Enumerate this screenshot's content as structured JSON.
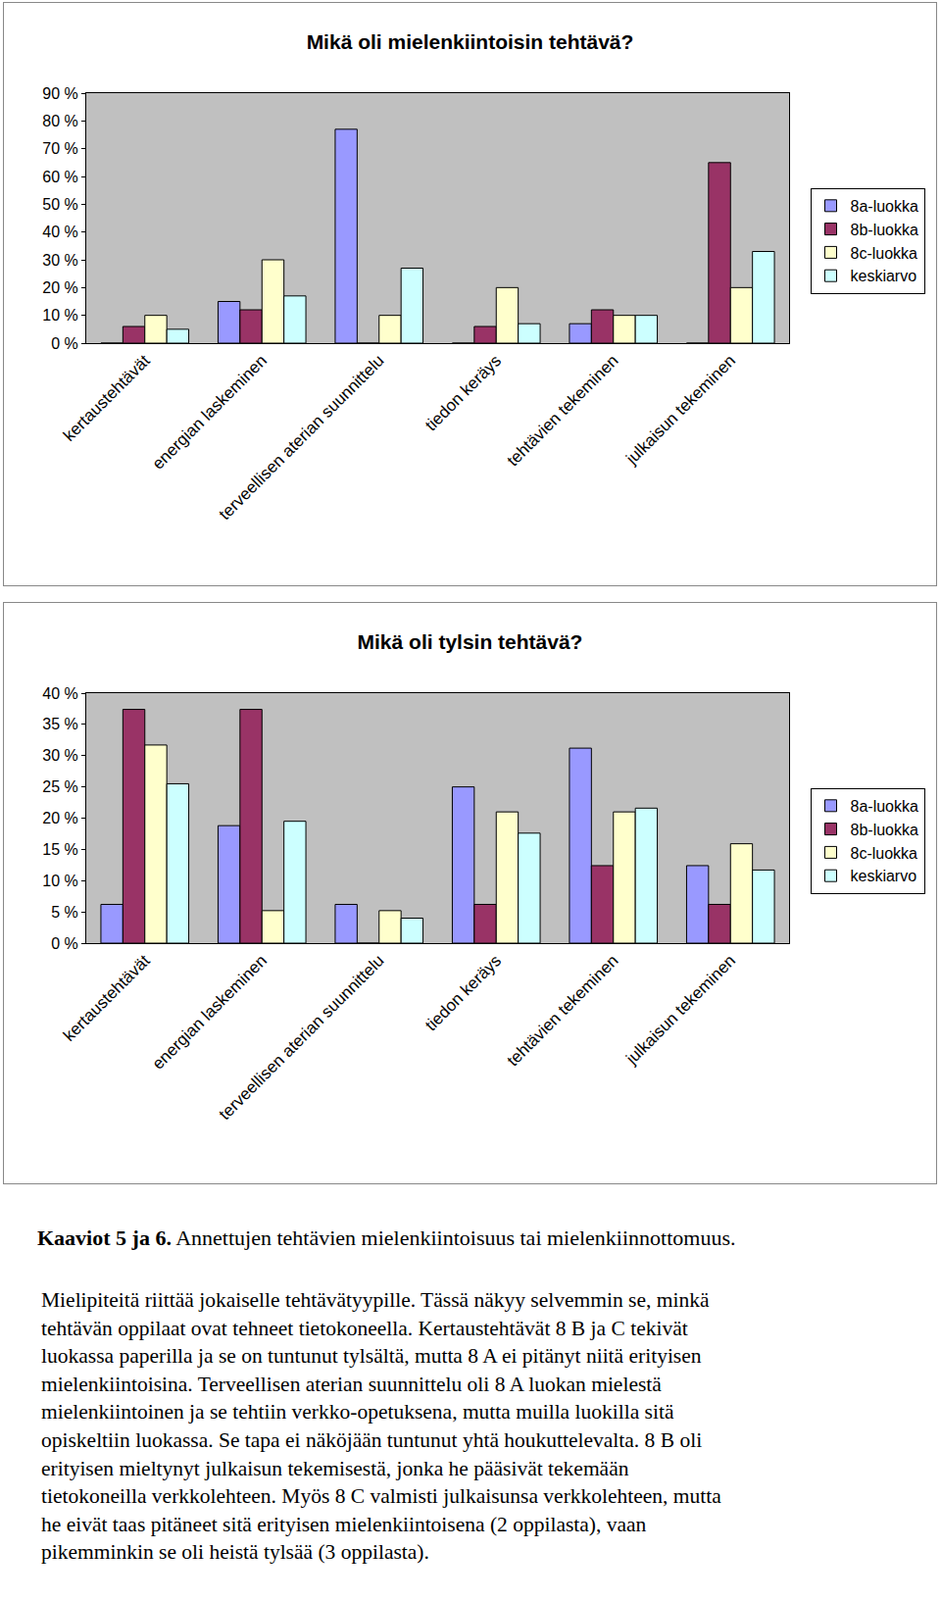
{
  "chart_data": [
    {
      "type": "bar",
      "title": "Mikä oli mielenkiintoisin tehtävä?",
      "categories": [
        "kertaustehtävät",
        "energian laskeminen",
        "terveellisen aterian suunnittelu",
        "tiedon keräys",
        "tehtävien tekeminen",
        "julkaisun tekeminen"
      ],
      "series": [
        {
          "name": "8a-luokka",
          "color": "#9999ff",
          "values": [
            0,
            15,
            77,
            0,
            7,
            0
          ]
        },
        {
          "name": "8b-luokka",
          "color": "#993366",
          "values": [
            6,
            12,
            0,
            6,
            12,
            65
          ]
        },
        {
          "name": "8c-luokka",
          "color": "#ffffcc",
          "values": [
            10,
            30,
            10,
            20,
            10,
            20
          ]
        },
        {
          "name": "keskiarvo",
          "color": "#ccffff",
          "values": [
            5,
            17,
            27,
            7,
            10,
            33
          ]
        }
      ],
      "ylim": [
        0,
        90
      ],
      "yticks": [
        {
          "value": 0,
          "label": "0 %"
        },
        {
          "value": 10,
          "label": "10 %"
        },
        {
          "value": 20,
          "label": "20 %"
        },
        {
          "value": 30,
          "label": "30 %"
        },
        {
          "value": 40,
          "label": "40 %"
        },
        {
          "value": 50,
          "label": "50 %"
        },
        {
          "value": 60,
          "label": "60 %"
        },
        {
          "value": 70,
          "label": "70 %"
        },
        {
          "value": 80,
          "label": "80 %"
        },
        {
          "value": 90,
          "label": "90 %"
        }
      ],
      "grid": false,
      "legend": "right"
    },
    {
      "type": "bar",
      "title": "Mikä oli tylsin tehtävä?",
      "categories": [
        "kertaustehtävät",
        "energian laskeminen",
        "terveellisen aterian suunnittelu",
        "tiedon keräys",
        "tehtävien tekeminen",
        "julkaisun tekeminen"
      ],
      "series": [
        {
          "name": "8a-luokka",
          "color": "#9999ff",
          "values": [
            6.2,
            18.8,
            6.2,
            25,
            31.2,
            12.4
          ]
        },
        {
          "name": "8b-luokka",
          "color": "#993366",
          "values": [
            37.4,
            37.4,
            0,
            6.2,
            12.4,
            6.2
          ]
        },
        {
          "name": "8c-luokka",
          "color": "#ffffcc",
          "values": [
            31.7,
            5.2,
            5.2,
            21,
            21,
            15.9
          ]
        },
        {
          "name": "keskiarvo",
          "color": "#ccffff",
          "values": [
            25.5,
            19.5,
            4,
            17.6,
            21.6,
            11.7
          ]
        }
      ],
      "ylim": [
        0,
        40
      ],
      "yticks": [
        {
          "value": 0,
          "label": "0 %"
        },
        {
          "value": 5,
          "label": "5 %"
        },
        {
          "value": 10,
          "label": "10 %"
        },
        {
          "value": 15,
          "label": "15 %"
        },
        {
          "value": 20,
          "label": "20 %"
        },
        {
          "value": 25,
          "label": "25 %"
        },
        {
          "value": 30,
          "label": "30 %"
        },
        {
          "value": 35,
          "label": "35 %"
        },
        {
          "value": 40,
          "label": "40 %"
        }
      ],
      "grid": false,
      "legend": "right"
    }
  ],
  "caption": {
    "label": "Kaaviot 5 ja 6.",
    "text": "Annettujen tehtävien mielenkiintoisuus tai mielenkiinnottomuus."
  },
  "paragraph": [
    "Mielipiteitä riittää jokaiselle tehtävätyypille. Tässä näkyy selvemmin se, minkä",
    "tehtävän oppilaat ovat tehneet tietokoneella. Kertaustehtävät 8 B ja C tekivät",
    "luokassa paperilla ja se on tuntunut tylsältä, mutta 8 A ei pitänyt niitä erityisen",
    "mielenkiintoisina. Terveellisen aterian suunnittelu oli 8 A luokan mielestä",
    "mielenkiintoinen ja se tehtiin verkko-opetuksena, mutta muilla luokilla sitä",
    "opiskeltiin luokassa. Se tapa ei näköjään tuntunut yhtä houkuttelevalta. 8 B oli",
    "erityisen mieltynyt julkaisun tekemisestä, jonka he pääsivät tekemään",
    "tietokoneilla verkkolehteen. Myös 8 C valmisti julkaisunsa verkkolehteen, mutta",
    "he eivät taas pitäneet sitä erityisen mielenkiintoisena (2 oppilasta), vaan",
    "pikemminkin se oli heistä tylsää (3 oppilasta)."
  ]
}
